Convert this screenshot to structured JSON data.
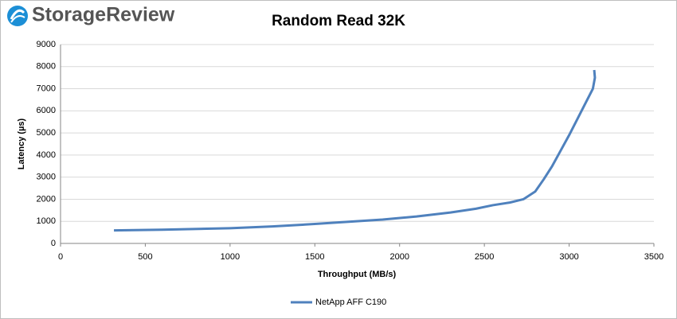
{
  "brand": "StorageReview",
  "chart_data": {
    "type": "line",
    "title": "Random Read 32K",
    "x_label": "Throughput (MB/s)",
    "y_label": "Latency (µs)",
    "x": [
      315,
      600,
      1000,
      1250,
      1500,
      1700,
      1900,
      2100,
      2300,
      2450,
      2550,
      2650,
      2730,
      2800,
      2850,
      2900,
      2950,
      3000,
      3050,
      3100,
      3140,
      3152,
      3148
    ],
    "series": [
      {
        "name": "NetApp AFF C190",
        "color": "#4f81bd",
        "values": [
          590,
          620,
          690,
          770,
          880,
          980,
          1080,
          1220,
          1400,
          1570,
          1730,
          1850,
          2000,
          2350,
          2900,
          3500,
          4200,
          4900,
          5650,
          6400,
          7000,
          7500,
          7850
        ]
      }
    ],
    "xlim": [
      0,
      3500
    ],
    "xticks": [
      0,
      500,
      1000,
      1500,
      2000,
      2500,
      3000,
      3500
    ],
    "ylim": [
      0,
      9000
    ],
    "yticks": [
      0,
      1000,
      2000,
      3000,
      4000,
      5000,
      6000,
      7000,
      8000,
      9000
    ],
    "grid": true,
    "legend": "bottom"
  }
}
